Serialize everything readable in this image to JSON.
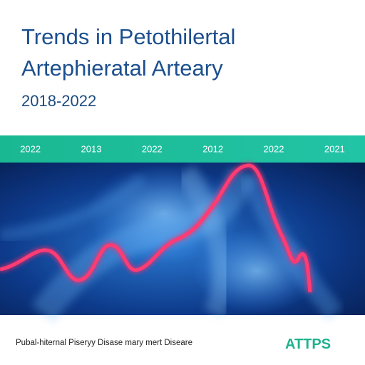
{
  "header": {
    "title_lines": [
      "Trends in Petothilertal",
      "Artephieratal Arteary"
    ],
    "subtitle": "2018-2022"
  },
  "timeline": {
    "labels": [
      "2022",
      "2013",
      "2022",
      "2012",
      "2022",
      "2021"
    ]
  },
  "footer": {
    "caption": "Pubal-hiternal Piseryy Disase mary mert Diseare",
    "logo": "ATTPS"
  }
}
